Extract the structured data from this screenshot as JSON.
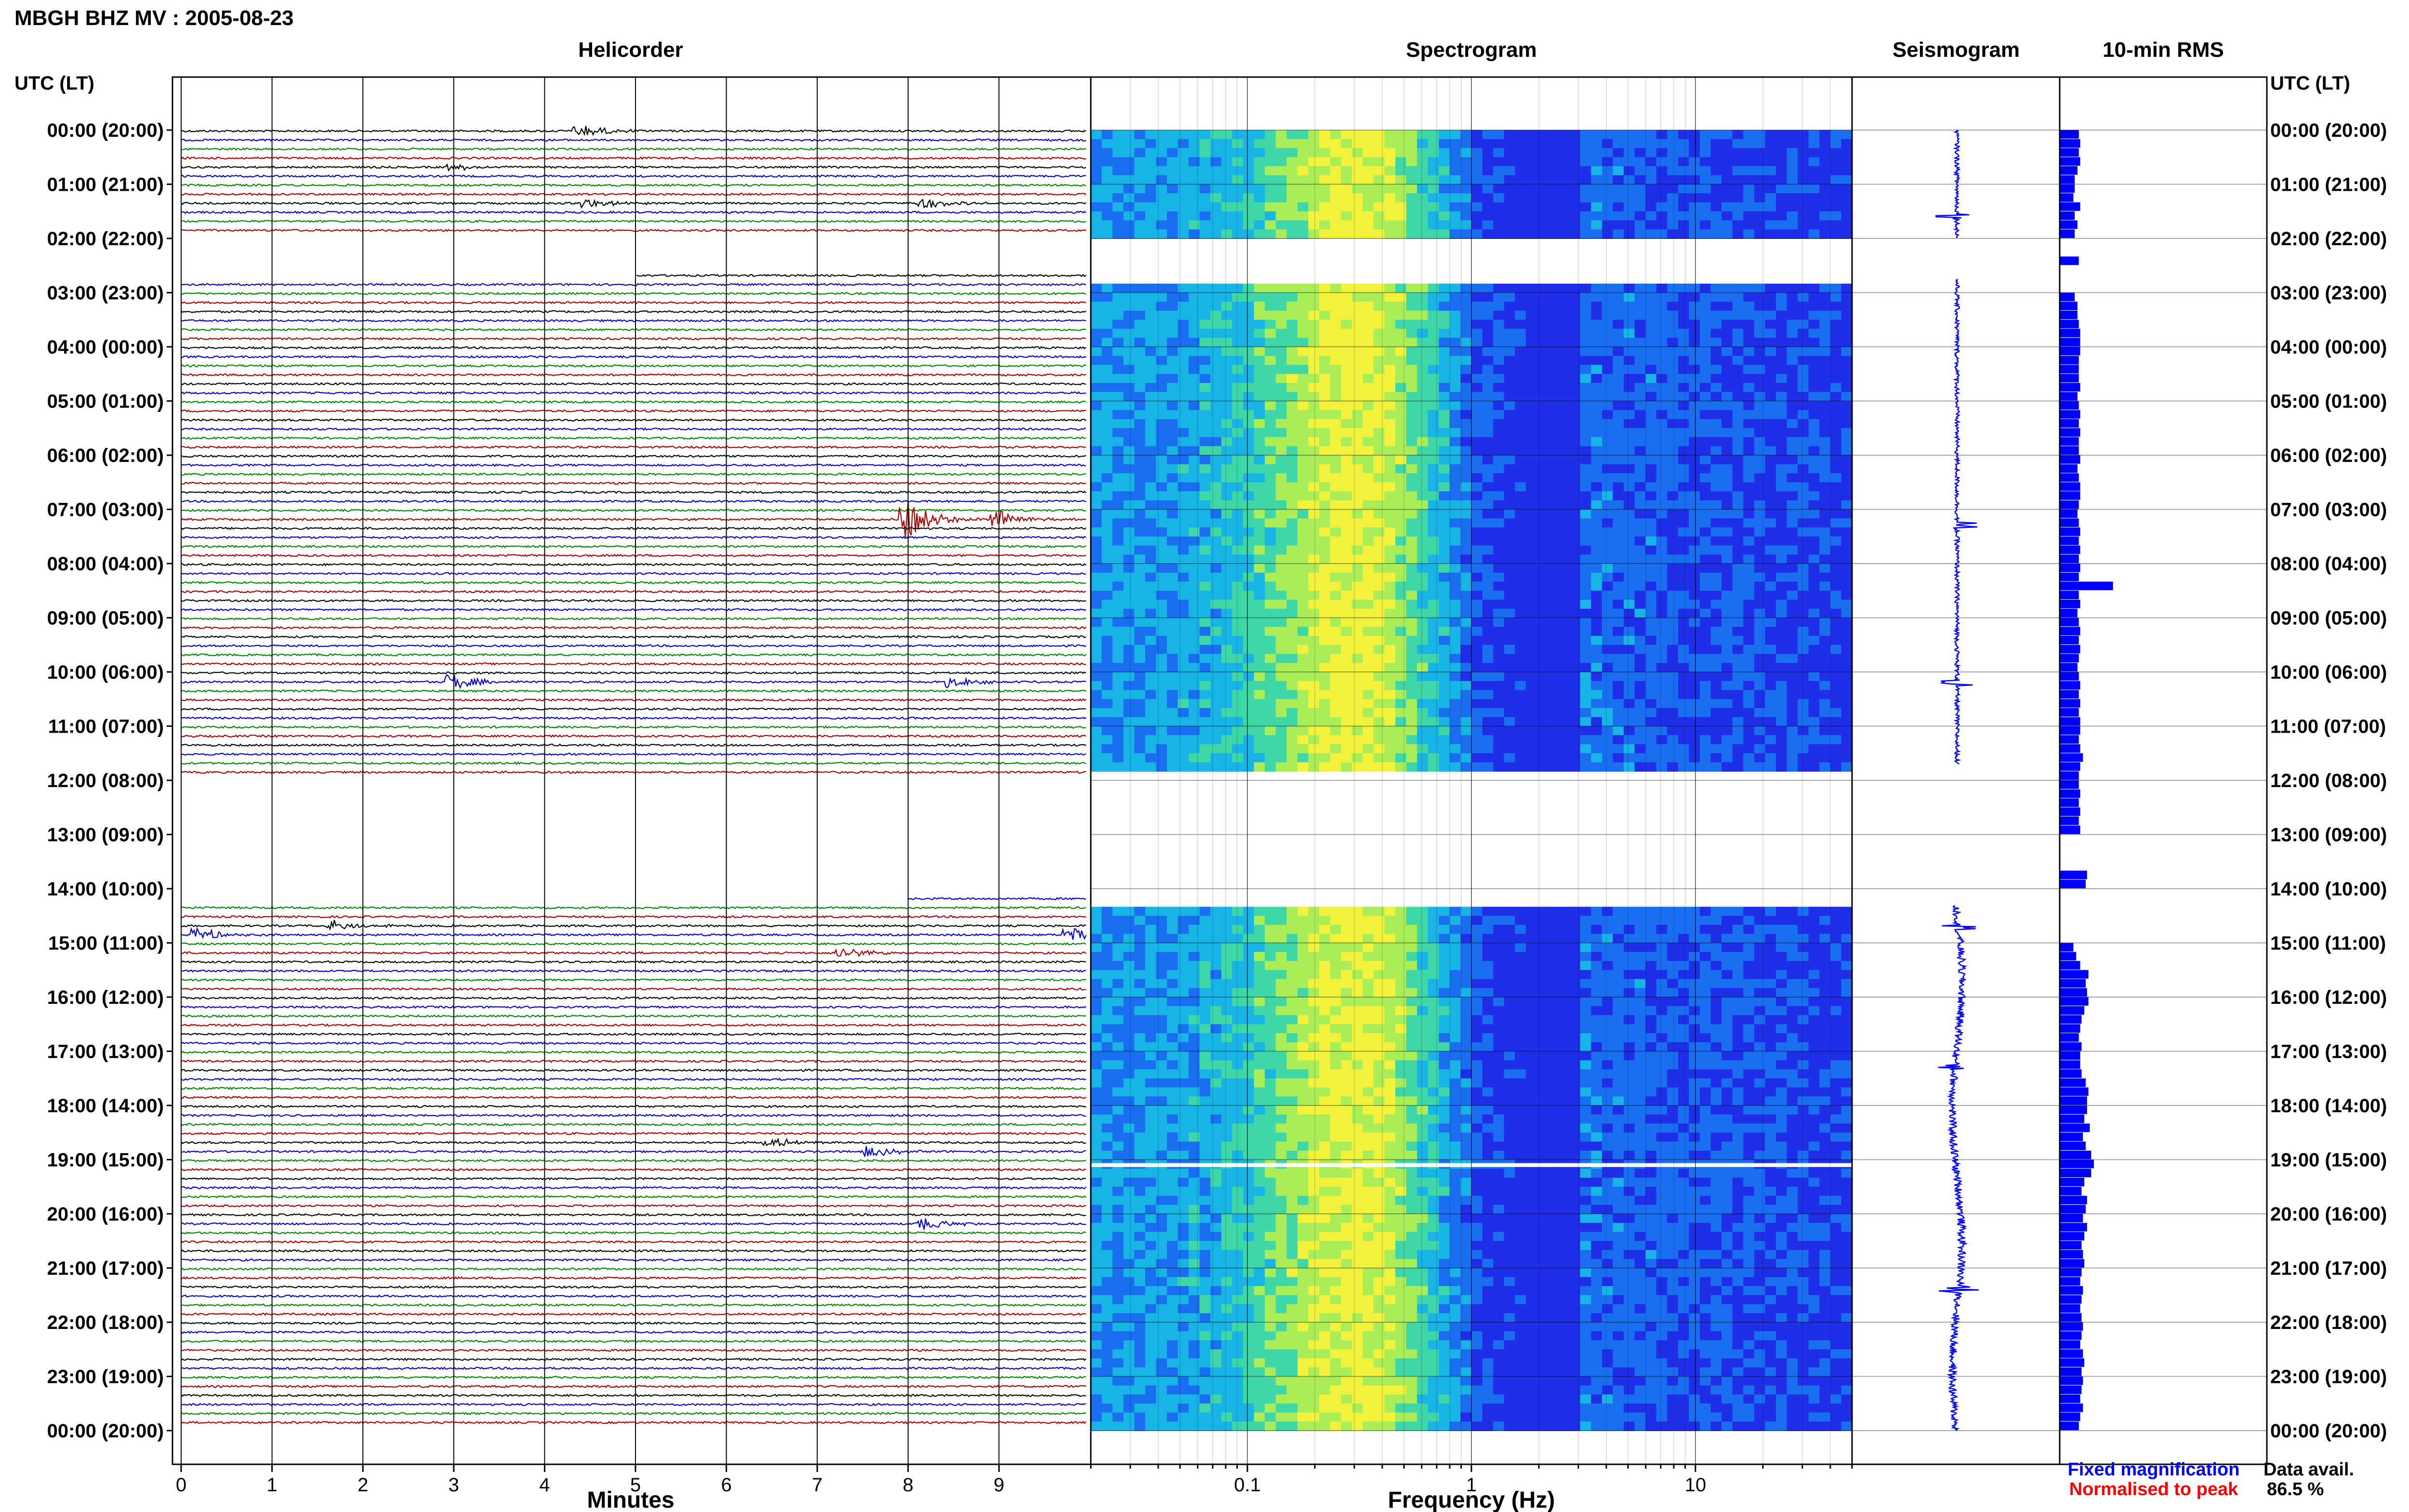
{
  "title": "MBGH BHZ MV : 2005-08-23",
  "panels": {
    "helicorder": "Helicorder",
    "spectrogram": "Spectrogram",
    "seismogram": "Seismogram",
    "rms": "10-min RMS"
  },
  "axis": {
    "time_header_left": "UTC (LT)",
    "time_header_right": "UTC (LT)",
    "minutes_label": "Minutes",
    "frequency_label": "Frequency (Hz)"
  },
  "legend": {
    "fixed_magnification": "Fixed magnification",
    "normalised_to_peak": "Normalised to peak",
    "data_avail_label": "Data avail.",
    "data_avail_value": "86.5 %"
  },
  "colors": {
    "trace_cycle": [
      "#000000",
      "#0000cc",
      "#008800",
      "#aa0000"
    ],
    "seismogram": "#0000ff",
    "rms": "#0000ff",
    "fixed_magnification": "#0000ff",
    "normalised_to_peak": "#ff0000"
  },
  "chart_data": [
    {
      "type": "helicorder",
      "title": "Helicorder",
      "xlabel": "Minutes",
      "x_ticks": [
        "0",
        "1",
        "2",
        "3",
        "4",
        "5",
        "6",
        "7",
        "8",
        "9"
      ],
      "xlim": [
        0,
        10
      ],
      "ylim_hours_utc": [
        0,
        24
      ],
      "hour_labels": [
        "00:00 (20:00)",
        "01:00 (21:00)",
        "02:00 (22:00)",
        "03:00 (23:00)",
        "04:00 (00:00)",
        "05:00 (01:00)",
        "06:00 (02:00)",
        "07:00 (03:00)",
        "08:00 (04:00)",
        "09:00 (05:00)",
        "10:00 (06:00)",
        "11:00 (07:00)",
        "12:00 (08:00)",
        "13:00 (09:00)",
        "14:00 (10:00)",
        "15:00 (11:00)",
        "16:00 (12:00)",
        "17:00 (13:00)",
        "18:00 (14:00)",
        "19:00 (15:00)",
        "20:00 (16:00)",
        "21:00 (17:00)",
        "22:00 (18:00)",
        "23:00 (19:00)",
        "00:00 (20:00)"
      ],
      "minutes_per_line": 10,
      "data_gaps_utc_hours": [
        [
          2.0,
          2.75
        ],
        [
          12.0,
          14.3
        ]
      ],
      "events": [
        {
          "hour": 0.0,
          "minute": 4.4,
          "amp": 2.0
        },
        {
          "hour": 0.6,
          "minute": 3.0,
          "amp": 1.0
        },
        {
          "hour": 1.4,
          "minute": 4.5,
          "amp": 1.2
        },
        {
          "hour": 1.4,
          "minute": 8.2,
          "amp": 1.5
        },
        {
          "hour": 7.1,
          "minute": 8.0,
          "amp": 6.0
        },
        {
          "hour": 7.1,
          "minute": 9.0,
          "amp": 3.0
        },
        {
          "hour": 10.1,
          "minute": 3.0,
          "amp": 2.5
        },
        {
          "hour": 10.2,
          "minute": 8.5,
          "amp": 1.5
        },
        {
          "hour": 14.6,
          "minute": 1.7,
          "amp": 1.5
        },
        {
          "hour": 14.9,
          "minute": 0.2,
          "amp": 2.0
        },
        {
          "hour": 14.9,
          "minute": 9.8,
          "amp": 2.0
        },
        {
          "hour": 15.2,
          "minute": 7.3,
          "amp": 1.5
        },
        {
          "hour": 18.6,
          "minute": 6.5,
          "amp": 1.5
        },
        {
          "hour": 18.8,
          "minute": 7.6,
          "amp": 1.5
        },
        {
          "hour": 20.1,
          "minute": 8.2,
          "amp": 1.8
        }
      ]
    },
    {
      "type": "heatmap",
      "title": "Spectrogram",
      "xlabel": "Frequency (Hz)",
      "x_scale": "log",
      "xlim": [
        0.02,
        50
      ],
      "x_ticks": [
        0.1,
        1,
        10
      ],
      "x_tick_labels": [
        "0.1",
        "1",
        "10"
      ],
      "peak_frequency_hz": 0.3,
      "colormap": [
        "#1f2fe8",
        "#1a6ef0",
        "#19b4e6",
        "#3fd6a8",
        "#a9ee58",
        "#f2f23c"
      ],
      "data_gaps_utc_hours": [
        [
          2.0,
          2.75
        ],
        [
          11.7,
          14.3
        ]
      ],
      "narrow_gap_utc_hours": [
        19.1
      ]
    },
    {
      "type": "line",
      "title": "Seismogram",
      "series": [
        {
          "color": "#0000ff"
        }
      ],
      "spikes_utc_hours": [
        1.6,
        7.3,
        10.2,
        14.7,
        17.3,
        21.4
      ]
    },
    {
      "type": "bar",
      "title": "10-min RMS",
      "orientation": "horizontal",
      "bins_per_hour": 6,
      "values": [
        0.28,
        0.3,
        0.28,
        0.3,
        0.26,
        0.22,
        0.22,
        0.2,
        0.3,
        0.22,
        0.26,
        0.22,
        0.0,
        0.0,
        0.28,
        0.0,
        0.0,
        0.0,
        0.22,
        0.26,
        0.26,
        0.28,
        0.3,
        0.3,
        0.3,
        0.28,
        0.28,
        0.28,
        0.3,
        0.26,
        0.28,
        0.3,
        0.28,
        0.3,
        0.28,
        0.28,
        0.3,
        0.26,
        0.28,
        0.3,
        0.3,
        0.28,
        0.26,
        0.28,
        0.3,
        0.28,
        0.3,
        0.28,
        0.3,
        0.28,
        0.78,
        0.28,
        0.3,
        0.26,
        0.28,
        0.3,
        0.28,
        0.3,
        0.28,
        0.26,
        0.28,
        0.3,
        0.28,
        0.3,
        0.28,
        0.3,
        0.3,
        0.28,
        0.3,
        0.34,
        0.3,
        0.28,
        0.28,
        0.3,
        0.28,
        0.3,
        0.28,
        0.3,
        0.0,
        0.0,
        0.0,
        0.0,
        0.4,
        0.38,
        0.0,
        0.0,
        0.0,
        0.0,
        0.0,
        0.0,
        0.2,
        0.24,
        0.3,
        0.42,
        0.38,
        0.4,
        0.42,
        0.36,
        0.32,
        0.3,
        0.28,
        0.32,
        0.3,
        0.3,
        0.32,
        0.38,
        0.42,
        0.4,
        0.4,
        0.36,
        0.44,
        0.34,
        0.38,
        0.46,
        0.5,
        0.46,
        0.36,
        0.32,
        0.4,
        0.38,
        0.34,
        0.4,
        0.36,
        0.32,
        0.34,
        0.36,
        0.32,
        0.3,
        0.34,
        0.32,
        0.3,
        0.32,
        0.34,
        0.32,
        0.3,
        0.34,
        0.36,
        0.32,
        0.34,
        0.32,
        0.3,
        0.34,
        0.3,
        0.28
      ]
    }
  ]
}
